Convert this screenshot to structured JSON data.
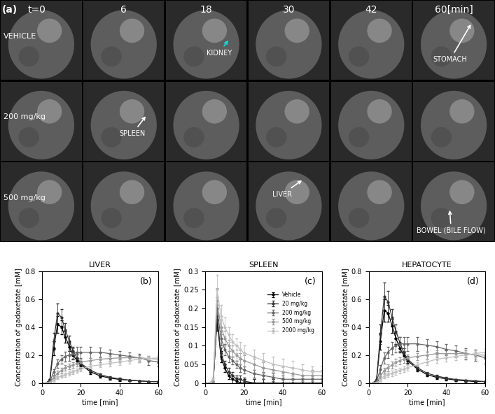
{
  "panel_a": {
    "label": "(a)",
    "columns": [
      "t=0",
      "6",
      "18",
      "30",
      "42",
      "60[min]"
    ],
    "rows": [
      "VEHICLE",
      "200 mg/kg",
      "500 mg/kg"
    ],
    "annotations": [
      "KIDNEY",
      "STOMACH",
      "SPLEEN",
      "LIVER",
      "BOWEL (BILE FLOW)"
    ]
  },
  "chart_data": [
    {
      "type": "line",
      "title": "LIVER",
      "annotations": [
        "(b)"
      ],
      "x_label": "time [min]",
      "y_label": "Concentration of gadoxetate [mM]",
      "x": [
        0,
        2,
        4,
        6,
        8,
        10,
        12,
        14,
        16,
        18,
        20,
        25,
        30,
        35,
        40,
        45,
        50,
        55,
        60
      ],
      "xlim": [
        0,
        60
      ],
      "xticks": [
        0,
        20,
        40,
        60
      ],
      "ylim": [
        0,
        0.8
      ],
      "yticks": [
        0,
        0.2,
        0.4,
        0.6,
        0.8
      ],
      "marker": "o",
      "series": [
        {
          "color": "#000000",
          "values": [
            0,
            0,
            0.02,
            0.25,
            0.42,
            0.4,
            0.33,
            0.26,
            0.2,
            0.16,
            0.13,
            0.08,
            0.05,
            0.035,
            0.025,
            0.02,
            0.015,
            0.01,
            0.01
          ],
          "errors": [
            0,
            0,
            0.01,
            0.05,
            0.06,
            0.05,
            0.04,
            0.03,
            0.025,
            0.02,
            0.02,
            0.015,
            0.01,
            0.01,
            0.01,
            0.005,
            0.005,
            0.005,
            0.005
          ]
        },
        {
          "color": "#333333",
          "values": [
            0,
            0,
            0.02,
            0.3,
            0.5,
            0.47,
            0.38,
            0.3,
            0.23,
            0.18,
            0.14,
            0.09,
            0.06,
            0.04,
            0.03,
            0.02,
            0.015,
            0.01,
            0.01
          ],
          "errors": [
            0,
            0,
            0.01,
            0.06,
            0.07,
            0.06,
            0.05,
            0.04,
            0.03,
            0.025,
            0.02,
            0.015,
            0.01,
            0.01,
            0.01,
            0.005,
            0.005,
            0.005,
            0.005
          ]
        },
        {
          "color": "#666666",
          "values": [
            0,
            0,
            0.01,
            0.08,
            0.14,
            0.17,
            0.19,
            0.2,
            0.21,
            0.22,
            0.22,
            0.22,
            0.22,
            0.21,
            0.2,
            0.19,
            0.18,
            0.16,
            0.15
          ],
          "errors": [
            0,
            0,
            0.005,
            0.02,
            0.03,
            0.03,
            0.035,
            0.04,
            0.04,
            0.04,
            0.04,
            0.04,
            0.035,
            0.03,
            0.03,
            0.03,
            0.03,
            0.03,
            0.03
          ]
        },
        {
          "color": "#999999",
          "values": [
            0,
            0,
            0.005,
            0.04,
            0.07,
            0.09,
            0.11,
            0.12,
            0.13,
            0.14,
            0.15,
            0.16,
            0.17,
            0.175,
            0.18,
            0.18,
            0.18,
            0.175,
            0.17
          ],
          "errors": [
            0,
            0,
            0.005,
            0.01,
            0.02,
            0.02,
            0.02,
            0.02,
            0.02,
            0.02,
            0.02,
            0.02,
            0.02,
            0.02,
            0.02,
            0.02,
            0.02,
            0.02,
            0.02
          ]
        },
        {
          "color": "#c0c0c0",
          "values": [
            0,
            0,
            0,
            0.02,
            0.04,
            0.05,
            0.06,
            0.07,
            0.08,
            0.09,
            0.1,
            0.12,
            0.13,
            0.14,
            0.15,
            0.16,
            0.17,
            0.175,
            0.18
          ],
          "errors": [
            0,
            0,
            0,
            0.01,
            0.01,
            0.01,
            0.015,
            0.015,
            0.015,
            0.015,
            0.015,
            0.015,
            0.015,
            0.02,
            0.02,
            0.02,
            0.02,
            0.02,
            0.02
          ]
        }
      ]
    },
    {
      "type": "line",
      "title": "SPLEEN",
      "annotations": [
        "(c)"
      ],
      "x_label": "time [min]",
      "y_label": "Concentration of gadoxetate [mM]",
      "x": [
        0,
        2,
        4,
        6,
        8,
        10,
        12,
        14,
        16,
        18,
        20,
        25,
        30,
        35,
        40,
        45,
        50,
        55,
        60
      ],
      "xlim": [
        0,
        60
      ],
      "xticks": [
        0,
        20,
        40,
        60
      ],
      "ylim": [
        0,
        0.3
      ],
      "yticks": [
        0,
        0.05,
        0.1,
        0.15,
        0.2,
        0.25,
        0.3
      ],
      "marker": "o",
      "legend": "upper right",
      "series": [
        {
          "name": "Vehicle",
          "color": "#000000",
          "values": [
            0,
            0,
            0,
            0.17,
            0.07,
            0.04,
            0.02,
            0.01,
            0.005,
            0,
            0,
            0,
            0,
            0,
            0,
            0,
            0,
            0,
            0
          ],
          "errors": [
            0,
            0,
            0.005,
            0.03,
            0.015,
            0.01,
            0.01,
            0.01,
            0.01,
            0.01,
            0.01,
            0.01,
            0.01,
            0.01,
            0.01,
            0.01,
            0.01,
            0.01,
            0.01
          ]
        },
        {
          "name": "20 mg/kg",
          "color": "#333333",
          "values": [
            0,
            0,
            0,
            0.18,
            0.08,
            0.05,
            0.03,
            0.02,
            0.01,
            0.01,
            0.005,
            0,
            0,
            0,
            0,
            0,
            0,
            0,
            0
          ],
          "errors": [
            0,
            0,
            0.005,
            0.03,
            0.015,
            0.01,
            0.01,
            0.01,
            0.01,
            0.01,
            0.01,
            0.01,
            0.01,
            0.01,
            0.01,
            0.01,
            0.01,
            0.01,
            0.01
          ]
        },
        {
          "name": "200 mg/kg",
          "color": "#666666",
          "values": [
            0,
            0,
            0,
            0.2,
            0.12,
            0.09,
            0.07,
            0.06,
            0.05,
            0.04,
            0.035,
            0.025,
            0.02,
            0.015,
            0.01,
            0.01,
            0.01,
            0.01,
            0.01
          ],
          "errors": [
            0,
            0,
            0.005,
            0.03,
            0.02,
            0.015,
            0.015,
            0.01,
            0.01,
            0.01,
            0.01,
            0.01,
            0.01,
            0.01,
            0.01,
            0.01,
            0.01,
            0.01,
            0.01
          ]
        },
        {
          "name": "500 mg/kg",
          "color": "#999999",
          "values": [
            0,
            0,
            0,
            0.22,
            0.15,
            0.12,
            0.1,
            0.085,
            0.075,
            0.065,
            0.06,
            0.05,
            0.04,
            0.035,
            0.03,
            0.025,
            0.02,
            0.02,
            0.02
          ],
          "errors": [
            0,
            0,
            0.005,
            0.035,
            0.02,
            0.02,
            0.015,
            0.015,
            0.015,
            0.015,
            0.015,
            0.015,
            0.015,
            0.015,
            0.015,
            0.015,
            0.015,
            0.015,
            0.015
          ]
        },
        {
          "name": "2000 mg/kg",
          "color": "#c0c0c0",
          "values": [
            0,
            0,
            0.01,
            0.25,
            0.18,
            0.15,
            0.13,
            0.11,
            0.1,
            0.09,
            0.08,
            0.07,
            0.06,
            0.05,
            0.045,
            0.04,
            0.035,
            0.03,
            0.03
          ],
          "errors": [
            0,
            0,
            0.005,
            0.04,
            0.03,
            0.025,
            0.02,
            0.02,
            0.02,
            0.02,
            0.02,
            0.02,
            0.02,
            0.02,
            0.02,
            0.02,
            0.015,
            0.015,
            0.015
          ]
        }
      ]
    },
    {
      "type": "line",
      "title": "HEPATOCYTE",
      "annotations": [
        "(d)"
      ],
      "x_label": "time [min]",
      "y_label": "Concentration of gadoxetate [mM]",
      "x": [
        0,
        2,
        4,
        6,
        8,
        10,
        12,
        14,
        16,
        18,
        20,
        25,
        30,
        35,
        40,
        45,
        50,
        55,
        60
      ],
      "xlim": [
        0,
        60
      ],
      "xticks": [
        0,
        20,
        40,
        60
      ],
      "ylim": [
        0,
        0.8
      ],
      "yticks": [
        0,
        0.2,
        0.4,
        0.6,
        0.8
      ],
      "marker": "o",
      "series": [
        {
          "color": "#000000",
          "values": [
            0,
            0,
            0.02,
            0.3,
            0.52,
            0.5,
            0.41,
            0.32,
            0.25,
            0.2,
            0.16,
            0.1,
            0.06,
            0.04,
            0.03,
            0.02,
            0.015,
            0.01,
            0.01
          ],
          "errors": [
            0,
            0,
            0.01,
            0.06,
            0.08,
            0.06,
            0.05,
            0.04,
            0.03,
            0.025,
            0.02,
            0.015,
            0.01,
            0.01,
            0.01,
            0.005,
            0.005,
            0.005,
            0.005
          ]
        },
        {
          "color": "#333333",
          "values": [
            0,
            0,
            0.02,
            0.35,
            0.62,
            0.58,
            0.47,
            0.37,
            0.29,
            0.22,
            0.17,
            0.11,
            0.07,
            0.05,
            0.035,
            0.025,
            0.02,
            0.015,
            0.01
          ],
          "errors": [
            0,
            0,
            0.01,
            0.07,
            0.1,
            0.08,
            0.06,
            0.05,
            0.04,
            0.03,
            0.025,
            0.015,
            0.01,
            0.01,
            0.01,
            0.005,
            0.005,
            0.005,
            0.005
          ]
        },
        {
          "color": "#666666",
          "values": [
            0,
            0,
            0.01,
            0.1,
            0.18,
            0.22,
            0.25,
            0.27,
            0.28,
            0.28,
            0.28,
            0.28,
            0.27,
            0.26,
            0.24,
            0.23,
            0.21,
            0.2,
            0.18
          ],
          "errors": [
            0,
            0,
            0.005,
            0.03,
            0.04,
            0.04,
            0.045,
            0.05,
            0.05,
            0.05,
            0.05,
            0.05,
            0.045,
            0.04,
            0.04,
            0.04,
            0.04,
            0.04,
            0.04
          ]
        },
        {
          "color": "#999999",
          "values": [
            0,
            0,
            0.005,
            0.05,
            0.09,
            0.11,
            0.13,
            0.15,
            0.16,
            0.17,
            0.18,
            0.19,
            0.2,
            0.21,
            0.21,
            0.21,
            0.21,
            0.2,
            0.2
          ],
          "errors": [
            0,
            0,
            0.005,
            0.015,
            0.02,
            0.025,
            0.025,
            0.025,
            0.025,
            0.025,
            0.025,
            0.025,
            0.025,
            0.025,
            0.025,
            0.025,
            0.025,
            0.025,
            0.025
          ]
        },
        {
          "color": "#c0c0c0",
          "values": [
            0,
            0,
            0,
            0.02,
            0.05,
            0.06,
            0.07,
            0.08,
            0.09,
            0.1,
            0.11,
            0.13,
            0.15,
            0.17,
            0.18,
            0.19,
            0.2,
            0.21,
            0.22
          ],
          "errors": [
            0,
            0,
            0,
            0.01,
            0.015,
            0.015,
            0.02,
            0.02,
            0.02,
            0.02,
            0.02,
            0.02,
            0.02,
            0.025,
            0.025,
            0.025,
            0.025,
            0.025,
            0.025
          ]
        }
      ]
    }
  ]
}
